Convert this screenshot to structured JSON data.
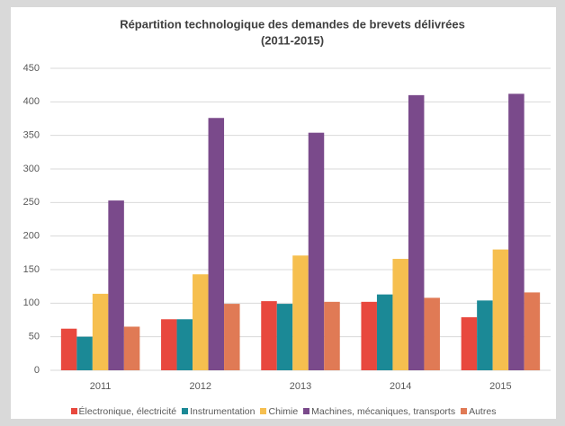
{
  "chart_data": {
    "type": "bar",
    "title": [
      "Répartition technologique des demandes de brevets délivrées",
      "(2011-2015)"
    ],
    "categories": [
      "2011",
      "2012",
      "2013",
      "2014",
      "2015"
    ],
    "series": [
      {
        "name": "Électronique, électricité",
        "color": "#e8483e",
        "values": [
          62,
          76,
          103,
          102,
          79
        ]
      },
      {
        "name": "Instrumentation",
        "color": "#1b8996",
        "values": [
          50,
          76,
          99,
          113,
          104
        ]
      },
      {
        "name": "Chimie",
        "color": "#f6bf4f",
        "values": [
          114,
          143,
          171,
          166,
          180
        ]
      },
      {
        "name": "Machines, mécaniques, transports",
        "color": "#7a4a8b",
        "values": [
          253,
          376,
          354,
          410,
          412
        ]
      },
      {
        "name": "Autres",
        "color": "#e07a55",
        "values": [
          65,
          99,
          102,
          108,
          116
        ]
      }
    ],
    "ylim": [
      0,
      450
    ],
    "yticks": [
      0,
      50,
      100,
      150,
      200,
      250,
      300,
      350,
      400,
      450
    ],
    "grid": true,
    "legend": "bottom"
  }
}
